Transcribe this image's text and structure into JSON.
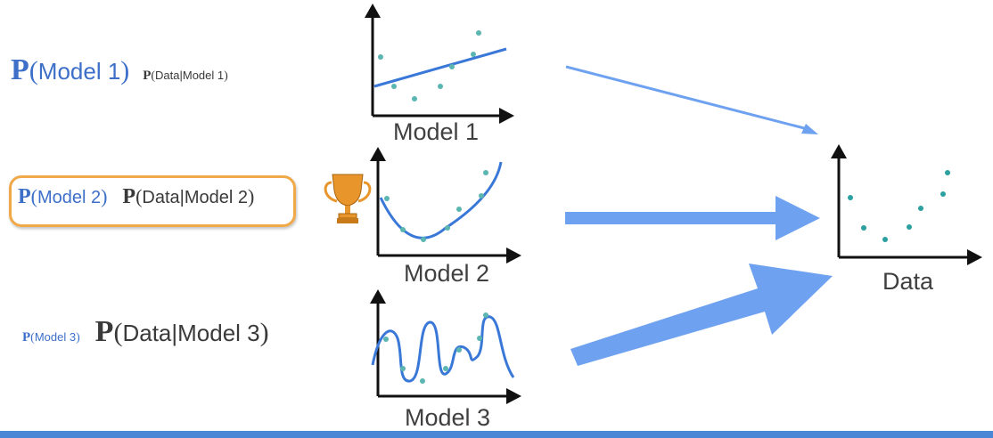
{
  "rows": [
    {
      "prior": {
        "P": "P",
        "open": "(",
        "text": "Model 1",
        "close": ")"
      },
      "likelihood": {
        "P": "P",
        "open": "(",
        "text": "Data|Model 1",
        "close": ")"
      },
      "model_label": "Model 1",
      "fit": "linear"
    },
    {
      "prior": {
        "P": "P",
        "open": "(",
        "text": "Model 2",
        "close": ")"
      },
      "likelihood": {
        "P": "P",
        "open": "(",
        "text": "Data|Model 2",
        "close": ")"
      },
      "model_label": "Model 2",
      "fit": "quadratic",
      "highlighted": true,
      "badge_icon": "trophy-icon"
    },
    {
      "prior": {
        "P": "P",
        "open": "(",
        "text": "Model 3",
        "close": ")"
      },
      "likelihood": {
        "P": "P",
        "open": "(",
        "text": "Data|Model 3",
        "close": ")"
      },
      "model_label": "Model 3",
      "fit": "wiggly"
    }
  ],
  "data_label": "Data",
  "colors": {
    "fit_line": "#3a78d8",
    "points": "#5bb5b0",
    "arrow": "#6ea2f0",
    "axes": "#111111",
    "highlight": "#f0a848",
    "trophy": "#e8962b",
    "bottom_bar": "#4a86d6"
  }
}
